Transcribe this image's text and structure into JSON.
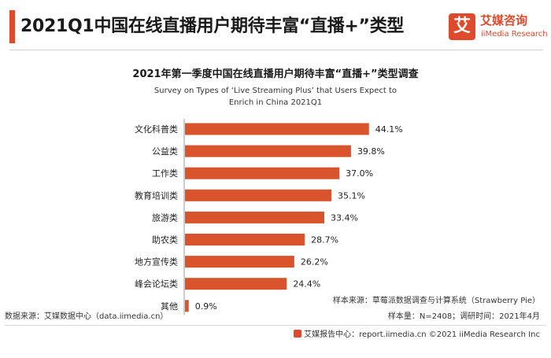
{
  "header": {
    "title": "2021Q1中国在线直播用户期待丰富“直播+”类型",
    "logo_mark": "艾",
    "logo_cn": "艾媒咨询",
    "logo_en": "iiMedia Research"
  },
  "chart_data": {
    "type": "bar",
    "orientation": "horizontal",
    "title": "2021年第一季度中国在线直播用户期待丰富“直播+”类型调查",
    "subtitle_line1": "Survey on Types of ‘Live Streaming Plus’ that Users Expect to",
    "subtitle_line2": "Enrich in China 2021Q1",
    "categories": [
      "文化科普类",
      "公益类",
      "工作类",
      "教育培训类",
      "旅游类",
      "助农类",
      "地方宣传类",
      "峰会论坛类",
      "其他"
    ],
    "values": [
      44.1,
      39.8,
      37.0,
      35.1,
      33.4,
      28.7,
      26.2,
      24.4,
      0.9
    ],
    "value_labels": [
      "44.1%",
      "39.8%",
      "37.0%",
      "35.1%",
      "33.4%",
      "28.7%",
      "26.2%",
      "24.4%",
      "0.9%"
    ],
    "unit": "%",
    "xlim": [
      0,
      50
    ],
    "grid": false,
    "bar_color": "#d9532c"
  },
  "footer": {
    "sample_source": "样本来源：草莓派数据调查与计算系统（Strawberry Pie）",
    "data_source": "数据来源：艾媒数据中心（data.iimedia.cn）",
    "sample_info": "样本量：N=2408；调研时间：2021年4月",
    "credit": "艾媒报告中心：report.iimedia.cn ©2021  iiMedia Research  Inc"
  }
}
